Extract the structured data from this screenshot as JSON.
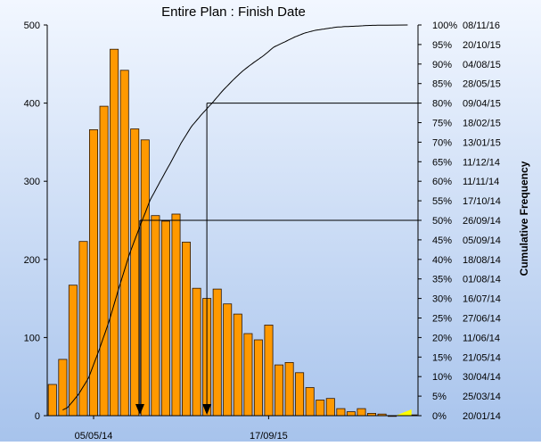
{
  "chart_data": {
    "type": "bar",
    "title": "Entire Plan : Finish Date",
    "ylabel_right": "Cumulative Frequency",
    "ylim": [
      0,
      500
    ],
    "y_ticks": [
      0,
      100,
      200,
      300,
      400,
      500
    ],
    "x_tick_labels": [
      "05/05/14",
      "17/09/15"
    ],
    "x_tick_bins": [
      4.5,
      21.5
    ],
    "values": [
      40,
      72,
      167,
      223,
      366,
      396,
      469,
      442,
      367,
      353,
      256,
      249,
      258,
      222,
      163,
      150,
      162,
      143,
      130,
      105,
      97,
      116,
      65,
      68,
      55,
      36,
      20,
      22,
      9,
      5,
      9,
      3,
      2,
      0,
      1,
      1
    ],
    "cumulative_labels": [
      {
        "pct": "0%",
        "date": "20/01/14"
      },
      {
        "pct": "5%",
        "date": "25/03/14"
      },
      {
        "pct": "10%",
        "date": "30/04/14"
      },
      {
        "pct": "15%",
        "date": "21/05/14"
      },
      {
        "pct": "20%",
        "date": "11/06/14"
      },
      {
        "pct": "25%",
        "date": "27/06/14"
      },
      {
        "pct": "30%",
        "date": "16/07/14"
      },
      {
        "pct": "35%",
        "date": "01/08/14"
      },
      {
        "pct": "40%",
        "date": "18/08/14"
      },
      {
        "pct": "45%",
        "date": "05/09/14"
      },
      {
        "pct": "50%",
        "date": "26/09/14"
      },
      {
        "pct": "55%",
        "date": "17/10/14"
      },
      {
        "pct": "60%",
        "date": "11/11/14"
      },
      {
        "pct": "65%",
        "date": "11/12/14"
      },
      {
        "pct": "70%",
        "date": "13/01/15"
      },
      {
        "pct": "75%",
        "date": "18/02/15"
      },
      {
        "pct": "80%",
        "date": "09/04/15"
      },
      {
        "pct": "85%",
        "date": "28/05/15"
      },
      {
        "pct": "90%",
        "date": "04/08/15"
      },
      {
        "pct": "95%",
        "date": "20/10/15"
      },
      {
        "pct": "100%",
        "date": "08/11/16"
      }
    ],
    "cumulative_curve": {
      "start_bin": 1.5,
      "end_bin": 33
    },
    "markers": [
      {
        "percentile": 50,
        "bin": 9
      },
      {
        "percentile": 80,
        "bin": 15.5
      }
    ],
    "colors": {
      "bar_fill": "#ff9900",
      "bar_stroke": "#2b1500",
      "curve": "#000000",
      "background_top": "#f2f7ff",
      "background_bottom": "#a7c3ec",
      "tail_marker": "#ffff00"
    }
  }
}
